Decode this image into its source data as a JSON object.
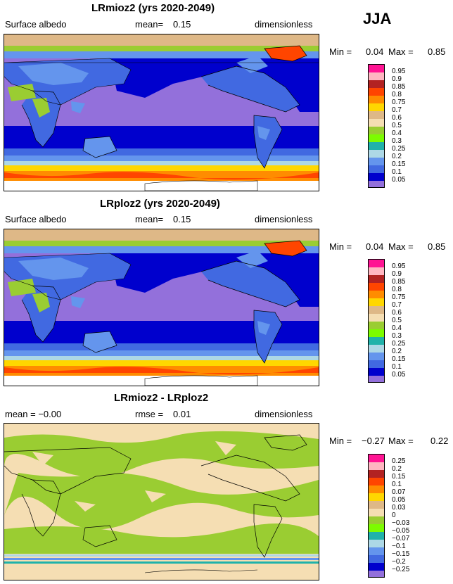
{
  "season": "JJA",
  "panels": [
    {
      "title": "LRmioz2 (yrs 2020-2049)",
      "left_label": "Surface albedo",
      "mean_label": "mean=",
      "mean_value": "0.15",
      "units": "dimensionless",
      "min_label": "Min =",
      "min_value": "0.04",
      "max_label": "Max =",
      "max_value": "0.85"
    },
    {
      "title": "LRploz2 (yrs 2020-2049)",
      "left_label": "Surface albedo",
      "mean_label": "mean=",
      "mean_value": "0.15",
      "units": "dimensionless",
      "min_label": "Min =",
      "min_value": "0.04",
      "max_label": "Max =",
      "max_value": "0.85"
    },
    {
      "title": "LRmioz2 - LRploz2",
      "left_label": "mean = −0.00",
      "mean_label": "rmse =",
      "mean_value": "0.01",
      "units": "dimensionless",
      "min_label": "Min =",
      "min_value": "−0.27",
      "max_label": "Max =",
      "max_value": "0.22"
    }
  ],
  "legend_abs": {
    "labels": [
      "0.95",
      "0.9",
      "0.85",
      "0.8",
      "0.75",
      "0.7",
      "0.6",
      "0.5",
      "0.4",
      "0.3",
      "0.25",
      "0.2",
      "0.15",
      "0.1",
      "0.05"
    ],
    "colors": [
      "#ff1493",
      "#ffb6c1",
      "#b22222",
      "#ff4500",
      "#ff8c00",
      "#ffd700",
      "#deb887",
      "#f5deb3",
      "#9acd32",
      "#7cfc00",
      "#20b2aa",
      "#add8e6",
      "#6495ed",
      "#4169e1",
      "#0000cd",
      "#9370db"
    ]
  },
  "legend_diff": {
    "labels": [
      "0.25",
      "0.2",
      "0.15",
      "0.1",
      "0.07",
      "0.05",
      "0.03",
      "0",
      "−0.03",
      "−0.05",
      "−0.07",
      "−0.1",
      "−0.15",
      "−0.2",
      "−0.25"
    ],
    "colors": [
      "#ff1493",
      "#ffb6c1",
      "#b22222",
      "#ff4500",
      "#ff8c00",
      "#ffd700",
      "#deb887",
      "#f5deb3",
      "#9acd32",
      "#7cfc00",
      "#20b2aa",
      "#add8e6",
      "#6495ed",
      "#4169e1",
      "#0000cd",
      "#9370db"
    ]
  }
}
